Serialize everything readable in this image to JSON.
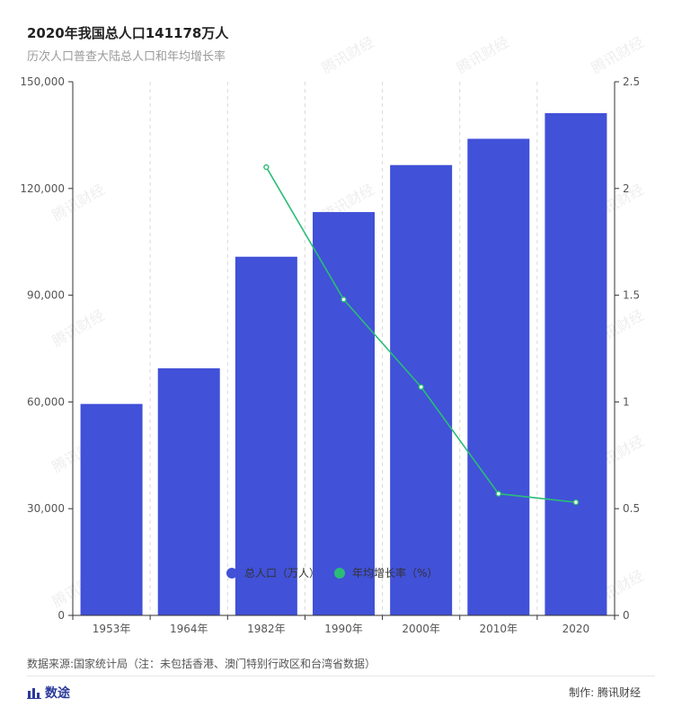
{
  "header": {
    "title": "2020年我国总人口141178万人",
    "subtitle": "历次人口普查大陆总人口和年均增长率"
  },
  "chart_data": {
    "type": "bar",
    "categories": [
      "1953年",
      "1964年",
      "1982年",
      "1990年",
      "2000年",
      "2010年",
      "2020"
    ],
    "series": [
      {
        "name": "总人口（万人）",
        "type": "bar",
        "axis": "left",
        "color": "#4151d8",
        "values": [
          59435,
          69458,
          100818,
          113368,
          126583,
          133972,
          141178
        ]
      },
      {
        "name": "年均增长率（%）",
        "type": "line",
        "axis": "right",
        "color": "#2bbd77",
        "values": [
          null,
          null,
          2.1,
          1.48,
          1.07,
          0.57,
          0.53
        ]
      }
    ],
    "left_axis": {
      "ylim": [
        0,
        150000
      ],
      "ticks": [
        0,
        30000,
        60000,
        90000,
        120000,
        150000
      ],
      "tick_labels": [
        "0",
        "30,000",
        "60,000",
        "90,000",
        "120,000",
        "150,000"
      ]
    },
    "right_axis": {
      "ylim": [
        0,
        2.5
      ],
      "ticks": [
        0,
        0.5,
        1,
        1.5,
        2,
        2.5
      ],
      "tick_labels": [
        "0",
        "0.5",
        "1",
        "1.5",
        "2",
        "2.5"
      ]
    },
    "legend_placement": "bottom-center",
    "grid": "vertical dashed separators"
  },
  "watermark": {
    "text": "腾讯财经"
  },
  "footer": {
    "source": "数据来源:国家统计局（注：未包括香港、澳门特别行政区和台湾省数据）",
    "logo_text": "数途",
    "credit": "制作: 腾讯财经"
  }
}
